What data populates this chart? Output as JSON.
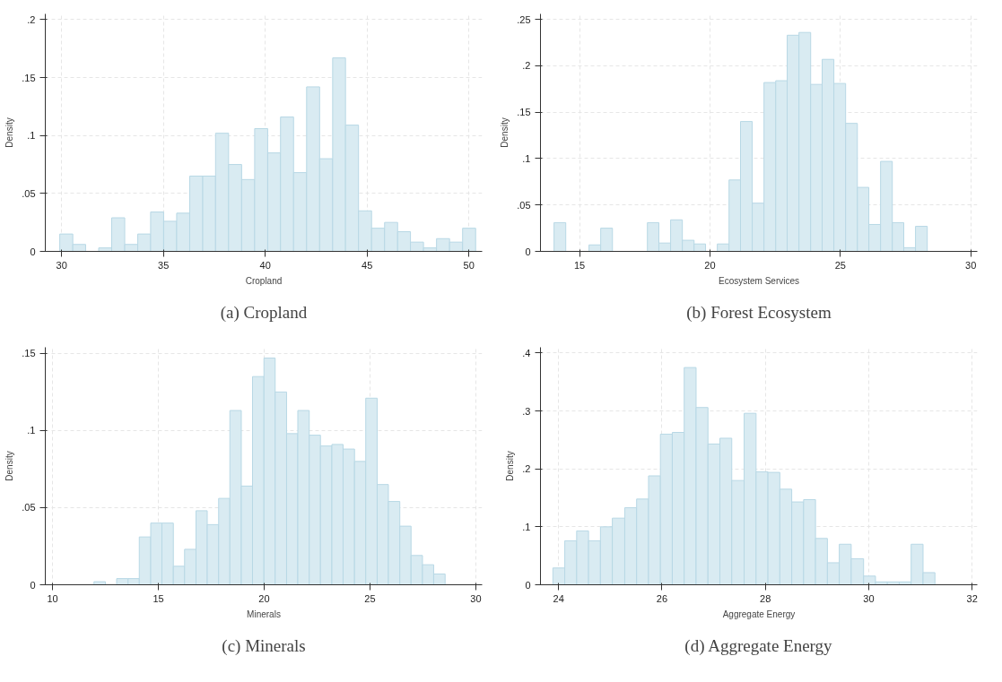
{
  "chart_data": [
    {
      "type": "histogram",
      "title": "(a) Cropland",
      "xlabel": "Cropland",
      "ylabel": "Density",
      "color": "#d9ebf2",
      "bins": [
        29.91,
        30.55,
        31.18,
        31.82,
        32.46,
        33.1,
        33.74,
        34.37,
        35.01,
        35.65,
        36.29,
        36.93,
        37.56,
        38.2,
        38.84,
        39.48,
        40.12,
        40.75,
        41.39,
        42.03,
        42.67,
        43.31,
        43.94,
        44.58,
        45.22,
        45.86,
        46.5,
        47.13,
        47.77,
        48.41,
        49.05,
        49.69,
        50.33
      ],
      "values": [
        0.015,
        0.006,
        0,
        0.003,
        0.029,
        0.006,
        0.015,
        0.034,
        0.026,
        0.033,
        0.065,
        0.065,
        0.102,
        0.075,
        0.062,
        0.106,
        0.085,
        0.116,
        0.068,
        0.142,
        0.08,
        0.167,
        0.109,
        0.035,
        0.02,
        0.025,
        0.017,
        0.008,
        0.003,
        0.011,
        0.008,
        0.02
      ],
      "xlim": [
        29.2,
        50.65
      ],
      "ylim": [
        0,
        0.205
      ],
      "xticks": [
        30,
        35,
        40,
        45,
        50
      ],
      "yticks": [
        {
          "value": 0,
          "label": "0"
        },
        {
          "value": 0.05,
          "label": ".05"
        },
        {
          "value": 0.1,
          "label": ".1"
        },
        {
          "value": 0.15,
          "label": ".15"
        },
        {
          "value": 0.2,
          "label": ".2"
        }
      ],
      "grid": true
    },
    {
      "type": "histogram",
      "title": "(b) Forest Ecosystem",
      "xlabel": "Ecosystem Services",
      "ylabel": "Density",
      "color": "#d9ebf2",
      "bins": [
        14.02,
        14.47,
        14.91,
        15.36,
        15.81,
        16.26,
        16.7,
        17.15,
        17.6,
        18.04,
        18.49,
        18.94,
        19.39,
        19.83,
        20.28,
        20.73,
        21.17,
        21.62,
        22.07,
        22.52,
        22.96,
        23.41,
        23.86,
        24.3,
        24.75,
        25.2,
        25.65,
        26.09,
        26.54,
        26.99,
        27.43,
        27.88,
        28.33
      ],
      "values": [
        0.031,
        0,
        0,
        0.007,
        0.025,
        0,
        0,
        0,
        0.031,
        0.009,
        0.034,
        0.012,
        0.008,
        0,
        0.008,
        0.077,
        0.14,
        0.052,
        0.182,
        0.184,
        0.233,
        0.236,
        0.18,
        0.207,
        0.181,
        0.138,
        0.069,
        0.029,
        0.097,
        0.031,
        0.004,
        0.027
      ],
      "xlim": [
        13.5,
        30.25
      ],
      "ylim": [
        0,
        0.256
      ],
      "xticks": [
        15,
        20,
        25,
        30
      ],
      "yticks": [
        {
          "value": 0,
          "label": "0"
        },
        {
          "value": 0.05,
          "label": ".05"
        },
        {
          "value": 0.1,
          "label": ".1"
        },
        {
          "value": 0.15,
          "label": ".15"
        },
        {
          "value": 0.2,
          "label": ".2"
        },
        {
          "value": 0.25,
          "label": ".25"
        }
      ],
      "grid": true
    },
    {
      "type": "histogram",
      "title": "(c) Minerals",
      "xlabel": "Minerals",
      "ylabel": "Density",
      "color": "#d9ebf2",
      "bins": [
        11.96,
        12.5,
        13.03,
        13.57,
        14.1,
        14.64,
        15.17,
        15.71,
        16.24,
        16.78,
        17.31,
        17.85,
        18.38,
        18.92,
        19.45,
        19.99,
        20.52,
        21.06,
        21.59,
        22.13,
        22.66,
        23.2,
        23.73,
        24.27,
        24.8,
        25.34,
        25.87,
        26.41,
        26.94,
        27.48,
        28.01,
        28.55
      ],
      "values": [
        0.002,
        0,
        0.004,
        0.004,
        0.031,
        0.04,
        0.04,
        0.012,
        0.023,
        0.048,
        0.039,
        0.056,
        0.113,
        0.064,
        0.135,
        0.147,
        0.125,
        0.098,
        0.113,
        0.097,
        0.09,
        0.091,
        0.088,
        0.08,
        0.121,
        0.065,
        0.054,
        0.038,
        0.019,
        0.013,
        0.007
      ],
      "xlim": [
        9.66,
        30.3
      ],
      "ylim": [
        0,
        0.154
      ],
      "xticks": [
        10,
        15,
        20,
        25,
        30
      ],
      "yticks": [
        {
          "value": 0,
          "label": "0"
        },
        {
          "value": 0.05,
          "label": ".05"
        },
        {
          "value": 0.1,
          "label": ".1"
        },
        {
          "value": 0.15,
          "label": ".15"
        }
      ],
      "grid": true
    },
    {
      "type": "histogram",
      "title": "(d) Aggregate Energy",
      "xlabel": "Aggregate Energy",
      "ylabel": "Density",
      "color": "#d9ebf2",
      "bins": [
        23.89,
        24.12,
        24.35,
        24.58,
        24.81,
        25.04,
        25.28,
        25.51,
        25.74,
        25.97,
        26.2,
        26.43,
        26.66,
        26.89,
        27.12,
        27.35,
        27.59,
        27.82,
        28.05,
        28.28,
        28.51,
        28.74,
        28.97,
        29.2,
        29.43,
        29.66,
        29.9,
        30.13,
        30.36,
        30.59,
        30.82,
        31.05,
        31.28
      ],
      "values": [
        0.029,
        0.076,
        0.093,
        0.076,
        0.1,
        0.115,
        0.133,
        0.148,
        0.188,
        0.26,
        0.263,
        0.375,
        0.306,
        0.243,
        0.253,
        0.18,
        0.296,
        0.195,
        0.194,
        0.165,
        0.143,
        0.147,
        0.08,
        0.038,
        0.07,
        0.045,
        0.015,
        0.005,
        0.005,
        0.005,
        0.07,
        0.021
      ],
      "xlim": [
        23.65,
        32.1
      ],
      "ylim": [
        0,
        0.41
      ],
      "xticks": [
        24,
        26,
        28,
        30,
        32
      ],
      "yticks": [
        {
          "value": 0,
          "label": "0"
        },
        {
          "value": 0.1,
          "label": ".1"
        },
        {
          "value": 0.2,
          "label": ".2"
        },
        {
          "value": 0.3,
          "label": ".3"
        },
        {
          "value": 0.4,
          "label": ".4"
        }
      ],
      "grid": true
    }
  ]
}
